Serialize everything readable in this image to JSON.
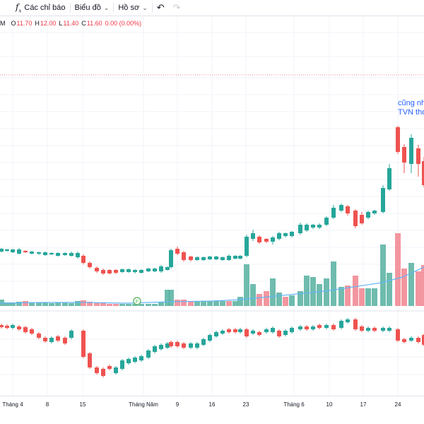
{
  "toolbar": {
    "indicators_label": "Các chỉ báo",
    "indicators_icon": "fx-icon",
    "chart_label": "Biểu đồ",
    "profile_label": "Hồ sơ",
    "undo_icon": "undo-icon",
    "redo_icon": "redo-icon"
  },
  "legend": {
    "symbol_fragment": "M",
    "open_label": "O",
    "open": "11.70",
    "high_label": "H",
    "high": "12.00",
    "low_label": "L",
    "low": "11.40",
    "close_label": "C",
    "close": "11.60",
    "change": "0.00 (0.00%)"
  },
  "annotation": {
    "line1": "cũng nh",
    "line2": "TVN tho"
  },
  "colors": {
    "up": "#26a69a",
    "down": "#ef5350",
    "volume_up": "#5fb5a5",
    "volume_down": "#f28b95",
    "ma_line": "#64b5f6",
    "annotation": "#2962ff",
    "price_line": "#f23645"
  },
  "x_axis": {
    "ticks": [
      "Tháng 4",
      "8",
      "15",
      "Tháng Năm",
      "9",
      "16",
      "23",
      "Tháng 6",
      "10",
      "17",
      "24"
    ]
  },
  "event_marker": {
    "label": "F"
  }
}
